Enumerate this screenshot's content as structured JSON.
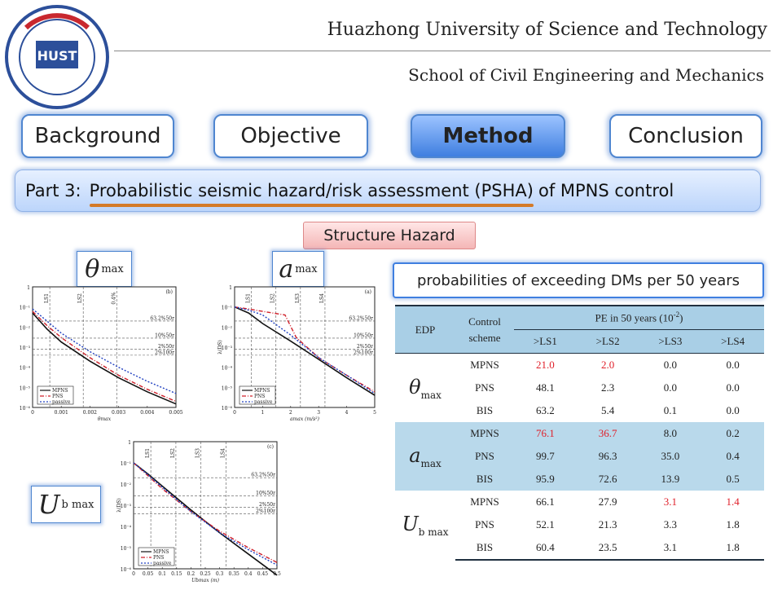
{
  "header": {
    "university": "Huazhong University of Science and Technology",
    "school": "School of Civil Engineering and Mechanics",
    "logo_text": "HUST"
  },
  "nav": {
    "tabs": [
      {
        "label": "Background",
        "active": false
      },
      {
        "label": "Objective",
        "active": false
      },
      {
        "label": "Method",
        "active": true
      },
      {
        "label": "Conclusion",
        "active": false
      }
    ]
  },
  "part": {
    "prefix": "Part 3:",
    "title": "Probabilistic seismic hazard/risk assessment (PSHA)",
    "suffix": "of MPNS control"
  },
  "tag": "Structure Hazard",
  "prob_caption": "probabilities of exceeding DMs per 50 years",
  "symbols": {
    "theta": "θ",
    "theta_sub": "max",
    "acc": "a",
    "acc_sub": "max",
    "disp": "U",
    "disp_sub": "b max"
  },
  "table": {
    "col_edp": "EDP",
    "col_control": "Control scheme",
    "col_pe": "PE in 50 years (10",
    "col_pe_exp": "-2",
    "col_pe_close": ")",
    "ls": [
      ">LS1",
      ">LS2",
      ">LS3",
      ">LS4"
    ],
    "groups": [
      {
        "rows": [
          {
            "scheme": "MPNS",
            "v": [
              "21.0",
              "2.0",
              "0.0",
              "0.0"
            ]
          },
          {
            "scheme": "PNS",
            "v": [
              "48.1",
              "2.3",
              "0.0",
              "0.0"
            ]
          },
          {
            "scheme": "BIS",
            "v": [
              "63.2",
              "5.4",
              "0.1",
              "0.0"
            ]
          }
        ]
      },
      {
        "rows": [
          {
            "scheme": "MPNS",
            "v": [
              "76.1",
              "36.7",
              "8.0",
              "0.2"
            ]
          },
          {
            "scheme": "PNS",
            "v": [
              "99.7",
              "96.3",
              "35.0",
              "0.4"
            ]
          },
          {
            "scheme": "BIS",
            "v": [
              "95.9",
              "72.6",
              "13.9",
              "0.5"
            ]
          }
        ]
      },
      {
        "rows": [
          {
            "scheme": "MPNS",
            "v": [
              "66.1",
              "27.9",
              "3.1",
              "1.4"
            ]
          },
          {
            "scheme": "PNS",
            "v": [
              "52.1",
              "21.3",
              "3.3",
              "1.8"
            ]
          },
          {
            "scheme": "BIS",
            "v": [
              "60.4",
              "23.5",
              "3.1",
              "1.8"
            ]
          }
        ]
      }
    ]
  },
  "chart_data": [
    {
      "type": "line",
      "panel": "(b)",
      "xlabel": "θmax",
      "ylabel": "",
      "xticks": [
        "0",
        "0.001",
        "0.002",
        "0.003",
        "0.004",
        "0.005"
      ],
      "yticks": [
        "1",
        "10⁻¹",
        "10⁻²",
        "10⁻³",
        "10⁻⁴",
        "10⁻⁵",
        "10⁻⁶"
      ],
      "limit_states": [
        "LS1",
        "LS2",
        "0.4%"
      ],
      "hazard_levels": [
        "63.2%50r",
        "10%50r",
        "2%50r",
        "2%100r"
      ],
      "legend": [
        "MPNS",
        "PNS",
        "passive"
      ],
      "xlim": [
        0,
        0.005
      ],
      "log_y": true,
      "series": [
        {
          "name": "MPNS",
          "x": [
            0,
            0.0005,
            0.001,
            0.002,
            0.003,
            0.004,
            0.005
          ],
          "y": [
            0.05,
            0.008,
            0.0018,
            0.0002,
            3e-05,
            6e-06,
            1.5e-06
          ]
        },
        {
          "name": "PNS",
          "x": [
            0,
            0.0005,
            0.001,
            0.002,
            0.003,
            0.004,
            0.005
          ],
          "y": [
            0.06,
            0.012,
            0.003,
            0.0003,
            4e-05,
            8e-06,
            2e-06
          ]
        },
        {
          "name": "passive",
          "x": [
            0,
            0.0005,
            0.001,
            0.002,
            0.003,
            0.004,
            0.005
          ],
          "y": [
            0.08,
            0.02,
            0.005,
            0.0006,
            0.0001,
            2e-05,
            5e-06
          ]
        }
      ]
    },
    {
      "type": "line",
      "panel": "(a)",
      "xlabel": "amax (m/s²)",
      "ylabel": "λ(DS)",
      "xticks": [
        "0",
        "1",
        "2",
        "3",
        "4",
        "5"
      ],
      "yticks": [
        "1",
        "10⁻¹",
        "10⁻²",
        "10⁻³",
        "10⁻⁴",
        "10⁻⁵",
        "10⁻⁶"
      ],
      "limit_states": [
        "LS1",
        "LS2",
        "LS3",
        "LS4"
      ],
      "hazard_levels": [
        "63.2%50r",
        "10%50r",
        "2%50r",
        "2%100r"
      ],
      "legend": [
        "MPNS",
        "PNS",
        "passive"
      ],
      "xlim": [
        0,
        5
      ],
      "log_y": true,
      "series": [
        {
          "name": "MPNS",
          "x": [
            0,
            0.5,
            1,
            2,
            3,
            4,
            5
          ],
          "y": [
            0.1,
            0.05,
            0.015,
            0.002,
            0.00025,
            3e-05,
            4e-06
          ]
        },
        {
          "name": "PNS",
          "x": [
            0,
            0.5,
            1,
            1.8,
            2.2,
            3,
            4,
            5
          ],
          "y": [
            0.1,
            0.08,
            0.06,
            0.04,
            0.003,
            0.0003,
            4e-05,
            6e-06
          ]
        },
        {
          "name": "passive",
          "x": [
            0,
            0.5,
            1,
            2,
            3,
            4,
            5
          ],
          "y": [
            0.1,
            0.07,
            0.04,
            0.004,
            0.0003,
            4e-05,
            5e-06
          ]
        }
      ]
    },
    {
      "type": "line",
      "panel": "(c)",
      "xlabel": "Ubmax (m)",
      "ylabel": "λ(DS)",
      "xticks": [
        "0",
        "0.05",
        "0.1",
        "0.15",
        "0.2",
        "0.25",
        "0.3",
        "0.35",
        "0.4",
        "0.45",
        "0.5"
      ],
      "yticks": [
        "1",
        "10⁻¹",
        "10⁻²",
        "10⁻³",
        "10⁻⁴",
        "10⁻⁵",
        "10⁻⁶"
      ],
      "limit_states": [
        "LS1",
        "LS2",
        "LS3",
        "LS4"
      ],
      "hazard_levels": [
        "63.2%50r",
        "10%50r",
        "2%50r",
        "2%100r"
      ],
      "legend": [
        "MPNS",
        "PNS",
        "passive"
      ],
      "xlim": [
        0,
        0.5
      ],
      "log_y": true,
      "series": [
        {
          "name": "MPNS",
          "x": [
            0,
            0.05,
            0.1,
            0.2,
            0.3,
            0.4,
            0.5
          ],
          "y": [
            0.1,
            0.03,
            0.008,
            0.0006,
            5e-05,
            5e-06,
            5e-07
          ]
        },
        {
          "name": "PNS",
          "x": [
            0,
            0.05,
            0.1,
            0.2,
            0.3,
            0.4,
            0.5
          ],
          "y": [
            0.1,
            0.025,
            0.006,
            0.0005,
            6e-05,
            1e-05,
            2e-06
          ]
        },
        {
          "name": "passive",
          "x": [
            0,
            0.05,
            0.1,
            0.2,
            0.3,
            0.4,
            0.5
          ],
          "y": [
            0.1,
            0.028,
            0.007,
            0.0005,
            5e-05,
            8e-06,
            1.5e-06
          ]
        }
      ]
    }
  ],
  "colors": {
    "accent": "#3f7fe0",
    "highlight": "#e0202a",
    "table_band": "#b9d9eb",
    "underline": "#d47a28"
  }
}
